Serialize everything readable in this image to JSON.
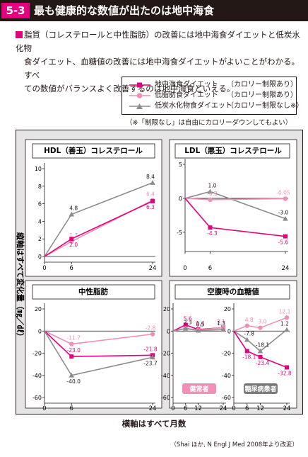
{
  "header": {
    "number": "5-3",
    "title": "最も健康的な数値が出たのは地中海食"
  },
  "summary": {
    "line1": "脂質（コレステロールと中性脂肪）の改善には地中海食ダイエットと低炭水化物",
    "line2": "食ダイエット、血糖値の改善には地中海食ダイエットがよいことがわかる。すべ",
    "line3": "ての数値がバランスよく改善するのは地中海食といえる。"
  },
  "legend": [
    {
      "name": "地中海食ダイエット",
      "note": "（カロリー制限あり）",
      "color": "#e4007f",
      "marker": "square"
    },
    {
      "name": "低脂肪食ダイエット",
      "note": "（カロリー制限あり）",
      "color": "#f08fb8",
      "marker": "circle"
    },
    {
      "name": "低炭水化物食ダイエット",
      "note": "（カロリー制限なし※）",
      "color": "#8c8c8c",
      "marker": "triangle"
    }
  ],
  "note": "（※「制限なし」は自由にカロリーダウンしてもよい）",
  "y_axis_caption": "縦軸はすべて変化量（㎎／㎗）",
  "x_axis_caption": "横軸はすべて月数",
  "source": "（Shai ほか, N Engl J Med 2008年より改変）",
  "colors": {
    "mediterranean": "#e4007f",
    "low_fat": "#f08fb8",
    "low_carb": "#8c8c8c"
  },
  "chart_data": [
    {
      "type": "line",
      "title": "HDL（善玉）コレステロール",
      "x": [
        0,
        6,
        24
      ],
      "xticks": [
        "0",
        "6",
        "24"
      ],
      "ylim": [
        0,
        10
      ],
      "yticks": [
        0,
        2,
        4,
        6,
        8,
        10
      ],
      "series": [
        {
          "name": "低炭水化物食ダイエット",
          "values": [
            0,
            4.8,
            8.4
          ],
          "labels": [
            "",
            "4.8",
            "8.4"
          ]
        },
        {
          "name": "低脂肪食ダイエット",
          "values": [
            0,
            1.7,
            6.4
          ],
          "labels": [
            "",
            "1.7",
            "6.4"
          ]
        },
        {
          "name": "地中海食ダイエット",
          "values": [
            0,
            2.0,
            6.3
          ],
          "labels": [
            "",
            "2.0",
            "6.3"
          ]
        }
      ]
    },
    {
      "type": "line",
      "title": "LDL（悪玉）コレステロール",
      "x": [
        0,
        6,
        24
      ],
      "xticks": [
        "0",
        "6",
        "24"
      ],
      "ylim": [
        -7,
        5
      ],
      "yticks": [
        -5,
        0,
        5
      ],
      "series": [
        {
          "name": "低炭水化物食ダイエット",
          "values": [
            0,
            1.0,
            -3.0
          ],
          "labels": [
            "",
            "1.0",
            "-3.0"
          ]
        },
        {
          "name": "低脂肪食ダイエット",
          "values": [
            0,
            -0.2,
            -0.05
          ],
          "labels": [
            "",
            "-0.2",
            "-0.05"
          ]
        },
        {
          "name": "地中海食ダイエット",
          "values": [
            0,
            -4.3,
            -5.6
          ],
          "labels": [
            "",
            "-4.3",
            "-5.6"
          ]
        }
      ]
    },
    {
      "type": "line",
      "title": "中性脂肪",
      "x": [
        0,
        6,
        24
      ],
      "xticks": [
        "0",
        "6",
        "24"
      ],
      "ylim": [
        -60,
        20
      ],
      "yticks": [
        -60,
        -40,
        -20,
        0,
        20
      ],
      "series": [
        {
          "name": "低脂肪食ダイエット",
          "values": [
            0,
            -11.7,
            -2.8
          ],
          "labels": [
            "",
            "-11.7",
            "-2.8"
          ]
        },
        {
          "name": "地中海食ダイエット",
          "values": [
            0,
            -23.0,
            -21.8
          ],
          "labels": [
            "",
            "-23.0",
            "-21.8"
          ]
        },
        {
          "name": "低炭水化物食ダイエット",
          "values": [
            0,
            -40.0,
            -23.7
          ],
          "labels": [
            "",
            "-40.0",
            "-23.7"
          ]
        }
      ]
    },
    {
      "type": "line",
      "title": "空腹時の血糖値",
      "subpanels": [
        {
          "badge": "健常者",
          "x": [
            0,
            6,
            12,
            24
          ],
          "xticks": [
            "0",
            "6",
            "12",
            "24"
          ],
          "ylim": [
            -60,
            20
          ],
          "yticks": [
            -60,
            -40,
            -20,
            0,
            20
          ],
          "series": [
            {
              "name": "地中海食ダイエット",
              "values": [
                0,
                5.6,
                1.4,
                3.1
              ],
              "labels": [
                "",
                "5.6",
                "1.4",
                "3.1"
              ]
            },
            {
              "name": "低脂肪食ダイエット",
              "values": [
                0,
                2.5,
                0.9,
                3.1
              ],
              "labels": [
                "",
                "2.5",
                "0.9",
                "3.1"
              ]
            },
            {
              "name": "低炭水化物食ダイエット",
              "values": [
                0,
                2.3,
                0.5,
                1.3
              ],
              "labels": [
                "",
                "2.3",
                "0.5",
                "1.3"
              ]
            }
          ]
        },
        {
          "badge": "糖尿病患者",
          "x": [
            0,
            6,
            12,
            24
          ],
          "xticks": [
            "0",
            "6",
            "12",
            "24"
          ],
          "ylim": [
            -60,
            20
          ],
          "yticks": [
            -60,
            -40,
            -20,
            0,
            20
          ],
          "series": [
            {
              "name": "低脂肪食ダイエット",
              "values": [
                0,
                4.8,
                3.0,
                12.1
              ],
              "labels": [
                "",
                "4.8",
                "3.0",
                "12.1"
              ]
            },
            {
              "name": "低炭水化物食ダイエット",
              "values": [
                0,
                -7.8,
                -18.1,
                1.2
              ],
              "labels": [
                "",
                "-7.8",
                "-18.1",
                "1.2"
              ]
            },
            {
              "name": "地中海食ダイエット",
              "values": [
                0,
                -18.1,
                -23.4,
                -32.8
              ],
              "labels": [
                "",
                "-18.1",
                "-23.4",
                "-32.8"
              ]
            }
          ]
        }
      ]
    }
  ]
}
